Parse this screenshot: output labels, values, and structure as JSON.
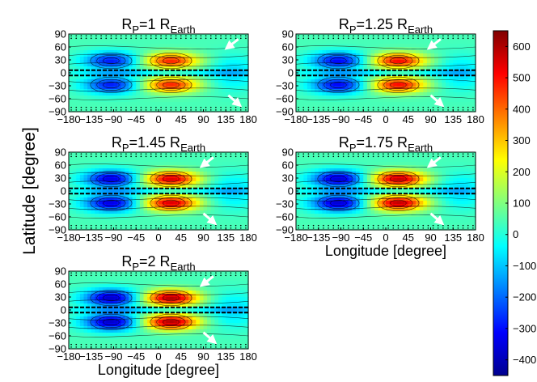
{
  "chart_data": {
    "type": "heatmap",
    "ylabel": "Latitude [degree]",
    "xlabel": "Longitude [degree]",
    "x_ticks": [
      -180,
      -135,
      -90,
      -45,
      0,
      45,
      90,
      135,
      180
    ],
    "x_tick_labels": [
      "−180",
      "−135",
      "−90",
      "−45",
      "0",
      "45",
      "90",
      "135",
      "180"
    ],
    "y_ticks": [
      90,
      60,
      30,
      0,
      -30,
      -60,
      -90
    ],
    "y_tick_labels": [
      "90",
      "60",
      "30",
      "0",
      "−30",
      "−60",
      "−90"
    ],
    "xlim": [
      -180,
      180
    ],
    "ylim": [
      -90,
      90
    ],
    "colorbar": {
      "range": [
        -450,
        650
      ],
      "ticks": [
        600,
        500,
        400,
        300,
        200,
        100,
        0,
        -100,
        -200,
        -300,
        -400
      ],
      "tick_labels": [
        "600",
        "500",
        "400",
        "300",
        "200",
        "100",
        "0",
        "−100",
        "−200",
        "−300",
        "−400"
      ],
      "colormap": [
        "#00008f",
        "#0000ff",
        "#00ffff",
        "#ffff00",
        "#ff0000",
        "#800000"
      ]
    },
    "panels": [
      {
        "title_main": "R",
        "title_sub": "P",
        "title_rest": "=1 R",
        "title_sub2": "Earth",
        "show_xlabel": false,
        "show_xticks": true
      },
      {
        "title_main": "R",
        "title_sub": "P",
        "title_rest": "=1.25 R",
        "title_sub2": "Earth",
        "show_xlabel": false,
        "show_xticks": true
      },
      {
        "title_main": "R",
        "title_sub": "P",
        "title_rest": "=1.45 R",
        "title_sub2": "Earth",
        "show_xlabel": false,
        "show_xticks": true
      },
      {
        "title_main": "R",
        "title_sub": "P",
        "title_rest": "=1.75 R",
        "title_sub2": "Earth",
        "show_xlabel": true,
        "show_xticks": true
      },
      {
        "title_main": "R",
        "title_sub": "P",
        "title_rest": "=2 R",
        "title_sub2": "Earth",
        "show_xlabel": true,
        "show_xticks": true
      }
    ]
  }
}
